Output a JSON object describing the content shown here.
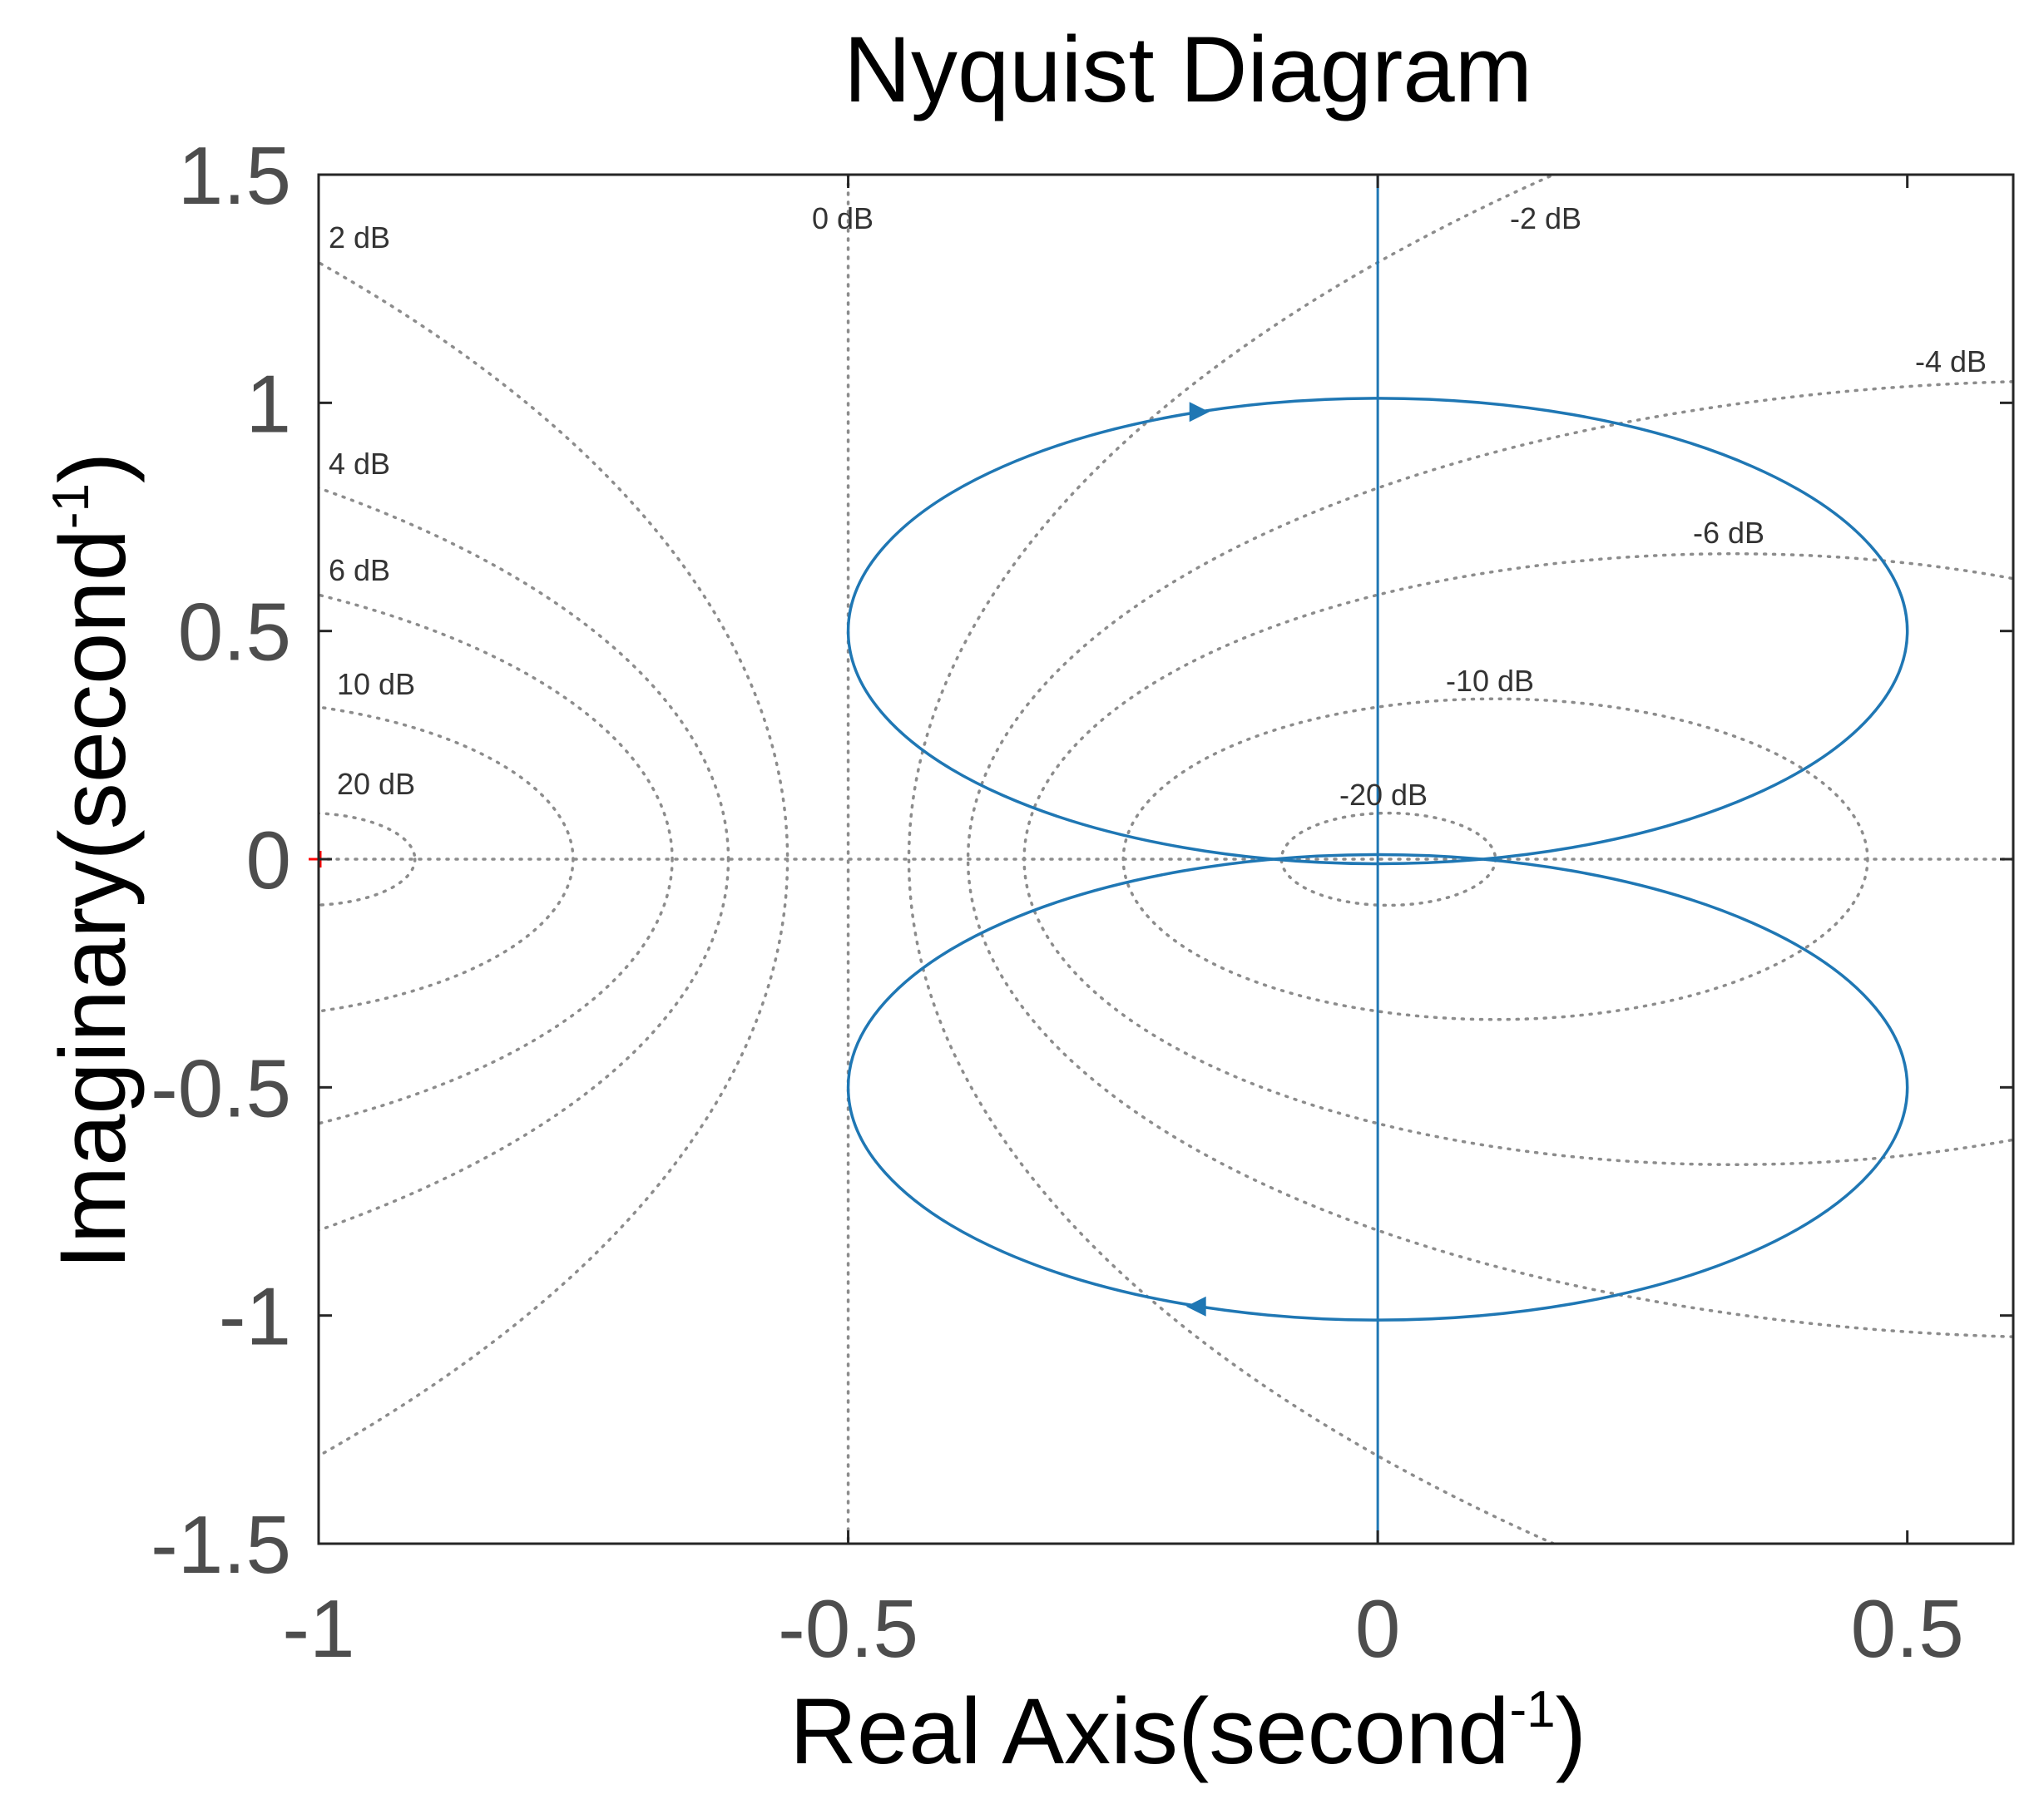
{
  "chart_data": {
    "type": "line",
    "title": "Nyquist Diagram",
    "xlabel": {
      "main": "Real Axis(second",
      "sup": "-1",
      "close": ")"
    },
    "ylabel": {
      "main": "Imaginary(second",
      "sup": "-1",
      "close": ")"
    },
    "xlim": [
      -1,
      0.6
    ],
    "ylim": [
      -1.5,
      1.5
    ],
    "xticks": [
      {
        "value": -1,
        "label": "-1"
      },
      {
        "value": -0.5,
        "label": "-0.5"
      },
      {
        "value": 0,
        "label": "0"
      },
      {
        "value": 0.5,
        "label": "0.5"
      }
    ],
    "yticks": [
      {
        "value": 1.5,
        "label": "1.5"
      },
      {
        "value": 1,
        "label": "1"
      },
      {
        "value": 0.5,
        "label": "0.5"
      },
      {
        "value": 0,
        "label": "0"
      },
      {
        "value": -0.5,
        "label": "-0.5"
      },
      {
        "value": -1,
        "label": "-1"
      },
      {
        "value": -1.5,
        "label": "-1.5"
      }
    ],
    "grid": "M-circles (dB contours)",
    "mcircles": [
      {
        "db": 20,
        "label": "20 dB"
      },
      {
        "db": 10,
        "label": "10 dB"
      },
      {
        "db": 6,
        "label": "6 dB"
      },
      {
        "db": 4,
        "label": "4 dB"
      },
      {
        "db": 2,
        "label": "2 dB"
      },
      {
        "db": 0,
        "label": "0 dB"
      },
      {
        "db": -2,
        "label": "-2 dB"
      },
      {
        "db": -4,
        "label": "-4 dB"
      },
      {
        "db": -6,
        "label": "-6 dB"
      },
      {
        "db": -10,
        "label": "-10 dB"
      },
      {
        "db": -20,
        "label": "-20 dB"
      }
    ],
    "series": [
      {
        "color": "#1f77b4",
        "shape": "two ellipses, symmetric about real axis, touching at the origin",
        "center_upper": [
          0,
          0.5
        ],
        "center_lower": [
          0,
          -0.5
        ],
        "x_semi_axis": 0.5,
        "y_semi_axis": 0.51,
        "x_extent": [
          -0.5,
          0.51
        ],
        "y_extent": [
          -1.02,
          1.02
        ],
        "arrows": [
          {
            "at": [
              -0.17,
              0.98
            ],
            "direction": "right"
          },
          {
            "at": [
              -0.17,
              -0.98
            ],
            "direction": "left"
          }
        ]
      }
    ],
    "critical_point": {
      "x": -1,
      "y": 0,
      "marker": "+",
      "color": "#ff0000"
    },
    "colors": {
      "curve": "#1f77b4",
      "grid": "#8c8c8c",
      "critical": "#ff0000",
      "axes": "#262626"
    }
  }
}
